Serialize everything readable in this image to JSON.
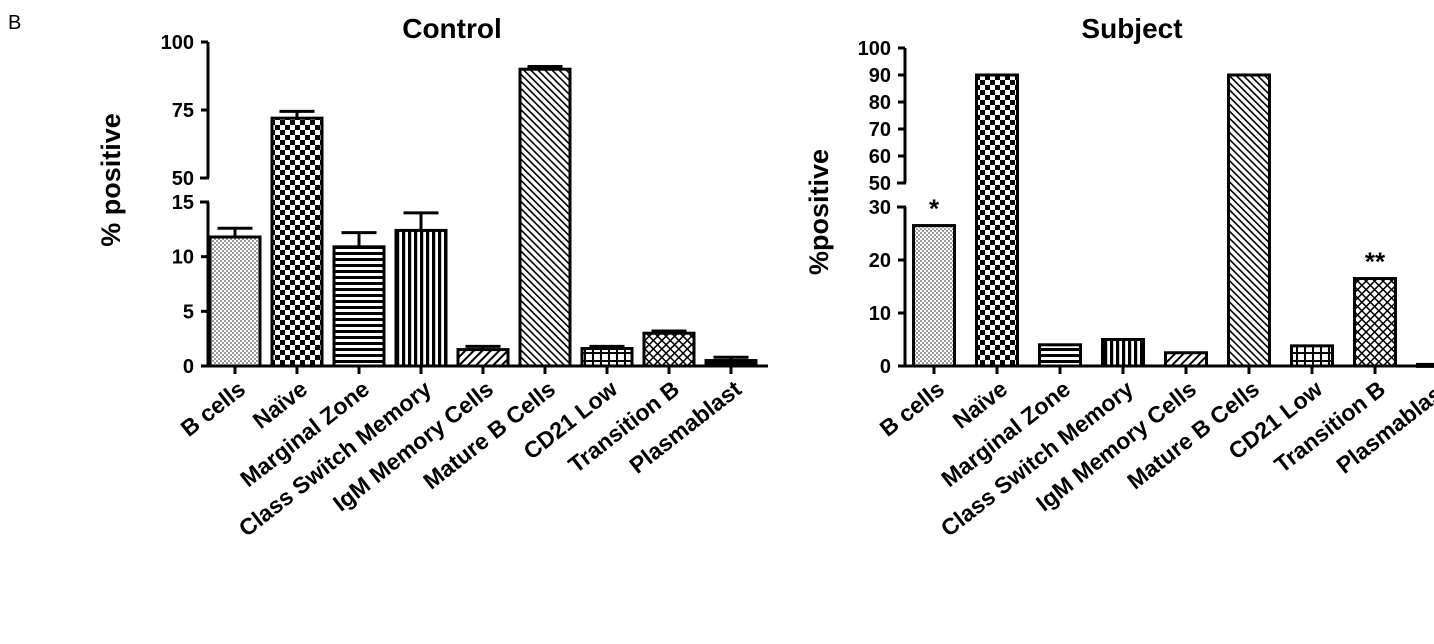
{
  "panel_label": "B",
  "chart_data": [
    {
      "type": "bar",
      "title": "Control",
      "ylabel": "% positive",
      "xlabel": "",
      "categories": [
        "B cells",
        "Naïve",
        "Marginal Zone",
        "Class Switch Memory",
        "IgM Memory Cells",
        "Mature B Cells",
        "CD21 Low",
        "Transition B",
        "Plasmablast"
      ],
      "values": [
        11.8,
        72,
        10.9,
        12.4,
        1.5,
        90,
        1.6,
        3.0,
        0.5
      ],
      "errors": [
        0.8,
        2.5,
        1.3,
        1.6,
        0.3,
        1.0,
        0.2,
        0.2,
        0.3
      ],
      "patterns": [
        "dots",
        "checker",
        "hlines",
        "vlines",
        "diag",
        "diag-dense",
        "grid",
        "crosshatch",
        "solid"
      ],
      "y_axis_break": {
        "lower_range": [
          0,
          15
        ],
        "upper_range": [
          50,
          100
        ]
      },
      "yticks_lower": [
        "0",
        "5",
        "10",
        "15"
      ],
      "yticks_upper": [
        "50",
        "75",
        "100"
      ],
      "significance": [
        "",
        "",
        "",
        "",
        "",
        "",
        "",
        "",
        ""
      ]
    },
    {
      "type": "bar",
      "title": "Subject",
      "ylabel": "%positive",
      "xlabel": "",
      "categories": [
        "B cells",
        "Naïve",
        "Marginal Zone",
        "Class Switch Memory",
        "IgM Memory Cells",
        "Mature B Cells",
        "CD21 Low",
        "Transition B",
        "Plasmablast"
      ],
      "values": [
        26.5,
        90,
        4,
        5,
        2.5,
        90,
        3.8,
        16.5,
        0.3
      ],
      "errors": [
        0,
        0,
        0,
        0,
        0,
        0,
        0,
        0,
        0
      ],
      "patterns": [
        "dots",
        "checker",
        "hlines",
        "vlines",
        "diag",
        "diag-dense",
        "grid",
        "crosshatch",
        "solid"
      ],
      "y_axis_break": {
        "lower_range": [
          0,
          30
        ],
        "upper_range": [
          50,
          100
        ]
      },
      "yticks_lower": [
        "0",
        "10",
        "20",
        "30"
      ],
      "yticks_upper": [
        "50",
        "60",
        "70",
        "80",
        "90",
        "100"
      ],
      "significance": [
        "*",
        "",
        "",
        "",
        "",
        "",
        "",
        "**",
        ""
      ]
    }
  ]
}
